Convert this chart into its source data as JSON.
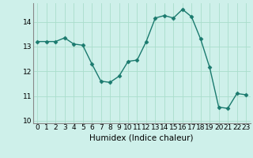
{
  "x": [
    0,
    1,
    2,
    3,
    4,
    5,
    6,
    7,
    8,
    9,
    10,
    11,
    12,
    13,
    14,
    15,
    16,
    17,
    18,
    19,
    20,
    21,
    22,
    23
  ],
  "y": [
    13.2,
    13.2,
    13.2,
    13.35,
    13.1,
    13.05,
    12.3,
    11.6,
    11.55,
    11.8,
    12.4,
    12.45,
    13.2,
    14.15,
    14.25,
    14.15,
    14.5,
    14.2,
    13.3,
    12.15,
    10.55,
    10.5,
    11.1,
    11.05
  ],
  "xlabel": "Humidex (Indice chaleur)",
  "xlim": [
    -0.5,
    23.5
  ],
  "ylim": [
    9.9,
    14.75
  ],
  "yticks": [
    10,
    11,
    12,
    13,
    14
  ],
  "xticks": [
    0,
    1,
    2,
    3,
    4,
    5,
    6,
    7,
    8,
    9,
    10,
    11,
    12,
    13,
    14,
    15,
    16,
    17,
    18,
    19,
    20,
    21,
    22,
    23
  ],
  "line_color": "#1a7a6e",
  "marker": "D",
  "markersize": 2.5,
  "bg_color": "#cef0ea",
  "grid_color": "#aaddcc",
  "xlabel_fontsize": 7.5,
  "tick_fontsize": 6.5
}
